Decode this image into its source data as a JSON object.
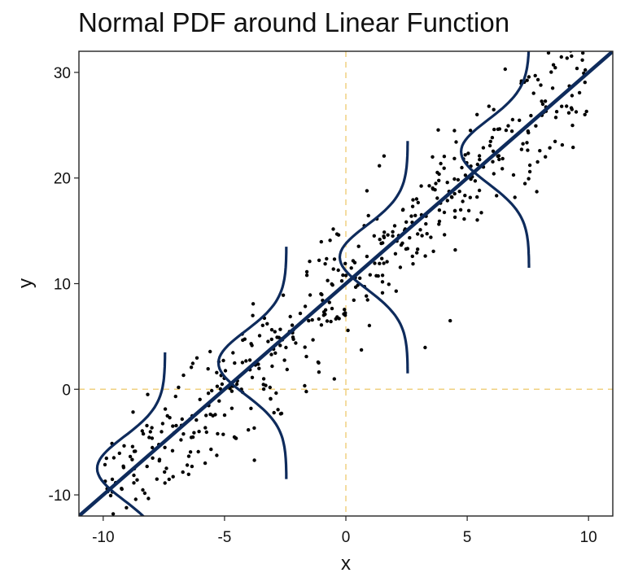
{
  "chart_data": {
    "type": "scatter",
    "title": "Normal PDF around Linear Function",
    "xlabel": "x",
    "ylabel": "y",
    "xlim": [
      -11,
      11
    ],
    "ylim": [
      -12,
      32
    ],
    "xticks": [
      -10,
      -5,
      0,
      5,
      10
    ],
    "yticks": [
      -10,
      0,
      10,
      20,
      30
    ],
    "x_tick_labels": [
      "-10",
      "-5",
      "0",
      "5",
      "10"
    ],
    "y_tick_labels": [
      "-10",
      "0",
      "10",
      "20",
      "30"
    ],
    "grid": false,
    "reference_lines": {
      "x": 0,
      "y": 0,
      "style": "dashed",
      "color": "#f0d080"
    },
    "regression_line": {
      "slope": 2,
      "intercept": 10,
      "color": "#0e2b5c"
    },
    "pdf_curves": {
      "centers_x": [
        -8.75,
        -3.75,
        1.25,
        6.25
      ],
      "sigma": 3,
      "half_span_y": 11,
      "peak_width_x": 2.8,
      "color": "#0e2b5c"
    },
    "scatter_points": {
      "x_range": [
        -10,
        10
      ],
      "count": 500,
      "noise_sd": 3,
      "color": "#000000"
    }
  }
}
